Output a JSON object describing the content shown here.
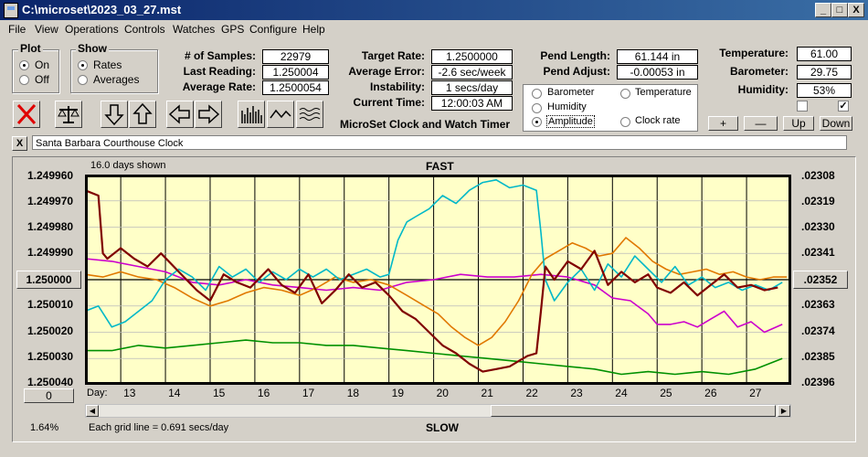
{
  "window": {
    "title": "C:\\microset\\2023_03_27.mst",
    "min_label": "_",
    "max_label": "□",
    "close_label": "X"
  },
  "menu": [
    "File",
    "View",
    "Operations",
    "Controls",
    "Watches",
    "GPS",
    "Configure",
    "Help"
  ],
  "plot_group": {
    "title": "Plot",
    "on": "On",
    "off": "Off",
    "selected": "On"
  },
  "show_group": {
    "title": "Show",
    "rates": "Rates",
    "averages": "Averages",
    "selected": "Rates"
  },
  "stats": {
    "samples_label": "# of Samples:",
    "samples": "22979",
    "last_label": "Last Reading:",
    "last": "1.250004",
    "avg_label": "Average Rate:",
    "avg": "1.2500054",
    "target_label": "Target Rate:",
    "target": "1.2500000",
    "error_label": "Average Error:",
    "error": "-2.6 sec/week",
    "instab_label": "Instability:",
    "instab": "1 secs/day",
    "time_label": "Current Time:",
    "time": "12:00:03 AM",
    "pend_len_label": "Pend Length:",
    "pend_len": "61.144 in",
    "pend_adj_label": "Pend Adjust:",
    "pend_adj": "-0.00053 in",
    "temp_label": "Temperature:",
    "temp": "61.00",
    "baro_label": "Barometer:",
    "baro": "29.75",
    "hum_label": "Humidity:",
    "hum": "53%"
  },
  "app_title": "MicroSet Clock and Watch Timer",
  "sensors": {
    "barometer": "Barometer",
    "temperature": "Temperature",
    "humidity": "Humidity",
    "amplitude": "Amplitude",
    "clock_rate": "Clock rate",
    "selected": "Amplitude",
    "colors": {
      "barometer": "#e07800",
      "temperature": "#009000",
      "humidity": "#cc00cc",
      "amplitude": "#00b8c8",
      "clock_rate": "#800000"
    }
  },
  "adjust_buttons": {
    "plus": "+",
    "minus": "—",
    "up": "Up",
    "down": "Down"
  },
  "checkboxes": {
    "left_checked": false,
    "right_checked": true,
    "check_mark": "✓"
  },
  "watch_name": "Santa Barbara Courthouse Clock",
  "clear_label": "X",
  "chart_data": {
    "type": "line",
    "top_label": "FAST",
    "bottom_label": "SLOW",
    "days_shown": "16.0 days shown",
    "grid_note": "Each grid line = 0.691 secs/day",
    "percent": "1.64%",
    "day_label": "Day:",
    "x_ticks": [
      "13",
      "14",
      "15",
      "16",
      "17",
      "18",
      "19",
      "20",
      "21",
      "22",
      "23",
      "24",
      "25",
      "26",
      "27"
    ],
    "xlim": [
      12.2,
      28.0
    ],
    "ylim": [
      1.24996,
      1.25004
    ],
    "y_ticks": [
      "1.249960",
      "1.249970",
      "1.249980",
      "1.249990",
      "1.250000",
      "1.250010",
      "1.250020",
      "1.250030",
      "1.250040"
    ],
    "y_center_button": "1.250000",
    "y_bottom_button": "0",
    "right_ticks": [
      ".02308",
      ".02319",
      ".02330",
      ".02341",
      ".02352",
      ".02363",
      ".02374",
      ".02385",
      ".02396"
    ],
    "right_center_button": ".02352",
    "series": [
      {
        "name": "Clock rate",
        "color": "#800000",
        "x": [
          12.2,
          12.5,
          12.6,
          12.7,
          13.0,
          13.3,
          13.6,
          13.9,
          14.3,
          14.7,
          15.0,
          15.3,
          15.6,
          15.9,
          16.3,
          16.6,
          16.9,
          17.2,
          17.5,
          17.8,
          18.1,
          18.4,
          18.7,
          19.0,
          19.3,
          19.6,
          19.9,
          20.2,
          20.5,
          20.8,
          21.1,
          21.4,
          21.7,
          21.9,
          22.1,
          22.3,
          22.4,
          22.5,
          22.7,
          23.0,
          23.3,
          23.6,
          23.9,
          24.2,
          24.5,
          24.8,
          25.0,
          25.3,
          25.6,
          25.9,
          26.2,
          26.5,
          26.8,
          27.1,
          27.4,
          27.7
        ],
        "y": [
          1.249966,
          1.249968,
          1.24999,
          1.249992,
          1.249988,
          1.249992,
          1.249995,
          1.24999,
          1.249997,
          1.250004,
          1.250008,
          1.249998,
          1.250001,
          1.250003,
          1.249996,
          1.250002,
          1.250005,
          1.249998,
          1.250009,
          1.250004,
          1.249998,
          1.250003,
          1.250001,
          1.250006,
          1.250012,
          1.250015,
          1.25002,
          1.250025,
          1.250028,
          1.250032,
          1.250035,
          1.250034,
          1.250033,
          1.250031,
          1.250029,
          1.250028,
          1.250012,
          1.249995,
          1.25,
          1.249993,
          1.249996,
          1.249989,
          1.250002,
          1.249997,
          1.250001,
          1.249998,
          1.250003,
          1.250005,
          1.250001,
          1.250006,
          1.250002,
          1.249998,
          1.250003,
          1.250002,
          1.250004,
          1.250003
        ]
      },
      {
        "name": "Amplitude",
        "color": "#00b8c8",
        "x": [
          12.2,
          12.5,
          12.8,
          13.1,
          13.4,
          13.7,
          14.0,
          14.3,
          14.6,
          14.9,
          15.2,
          15.5,
          15.8,
          16.1,
          16.4,
          16.7,
          17.0,
          17.3,
          17.6,
          17.9,
          18.2,
          18.5,
          18.8,
          19.0,
          19.2,
          19.4,
          19.6,
          19.9,
          20.2,
          20.5,
          20.8,
          21.1,
          21.4,
          21.7,
          22.0,
          22.3,
          22.4,
          22.5,
          22.7,
          23.0,
          23.3,
          23.6,
          23.9,
          24.2,
          24.5,
          24.8,
          25.1,
          25.4,
          25.7,
          26.0,
          26.3,
          26.6,
          26.9,
          27.2,
          27.5,
          27.8
        ],
        "y": [
          1.250012,
          1.25001,
          1.250018,
          1.250016,
          1.250012,
          1.250008,
          1.25,
          1.249996,
          1.249999,
          1.250004,
          1.249995,
          1.249999,
          1.249996,
          1.250001,
          1.249997,
          1.25,
          1.249996,
          1.249999,
          1.249996,
          1.25,
          1.249998,
          1.249996,
          1.249999,
          1.249998,
          1.249985,
          1.249978,
          1.249976,
          1.249973,
          1.249968,
          1.249971,
          1.249966,
          1.249963,
          1.249962,
          1.249965,
          1.249964,
          1.249966,
          1.249982,
          1.25,
          1.250008,
          1.250001,
          1.249996,
          1.250004,
          1.249994,
          1.249999,
          1.249991,
          1.249996,
          1.250001,
          1.249995,
          1.250002,
          1.249999,
          1.250003,
          1.250001,
          1.250004,
          1.250002,
          1.250004,
          1.250001
        ]
      },
      {
        "name": "Barometer",
        "color": "#e07800",
        "x": [
          12.2,
          12.6,
          13.0,
          13.4,
          13.8,
          14.2,
          14.6,
          15.0,
          15.4,
          15.8,
          16.2,
          16.6,
          17.0,
          17.4,
          17.8,
          18.2,
          18.6,
          19.0,
          19.4,
          19.8,
          20.1,
          20.4,
          20.7,
          21.0,
          21.3,
          21.6,
          21.9,
          22.2,
          22.5,
          22.8,
          23.1,
          23.4,
          23.7,
          24.0,
          24.3,
          24.6,
          24.9,
          25.2,
          25.5,
          25.8,
          26.1,
          26.4,
          26.7,
          27.0,
          27.3,
          27.6,
          27.9
        ],
        "y": [
          1.249998,
          1.249999,
          1.249997,
          1.249999,
          1.25,
          1.250003,
          1.250007,
          1.25001,
          1.250008,
          1.250005,
          1.250003,
          1.250004,
          1.250006,
          1.250003,
          1.249999,
          1.250001,
          1.25,
          1.250002,
          1.250006,
          1.25001,
          1.250013,
          1.250018,
          1.250022,
          1.250025,
          1.250022,
          1.250016,
          1.250008,
          1.249998,
          1.249992,
          1.249989,
          1.249986,
          1.249988,
          1.249991,
          1.24999,
          1.249984,
          1.249988,
          1.249993,
          1.249996,
          1.249998,
          1.249997,
          1.249996,
          1.249998,
          1.249997,
          1.249999,
          1.25,
          1.249999,
          1.249999
        ]
      },
      {
        "name": "Humidity",
        "color": "#cc00cc",
        "x": [
          12.2,
          12.8,
          13.4,
          14.0,
          14.6,
          15.2,
          15.8,
          16.4,
          17.0,
          17.6,
          18.2,
          18.8,
          19.4,
          20.0,
          20.6,
          21.2,
          21.8,
          22.4,
          23.0,
          23.6,
          24.0,
          24.4,
          24.8,
          25.0,
          25.3,
          25.6,
          25.9,
          26.2,
          26.5,
          26.8,
          27.1,
          27.4,
          27.8
        ],
        "y": [
          1.249992,
          1.249993,
          1.249995,
          1.249997,
          1.250001,
          1.250002,
          1.25,
          1.250002,
          1.250003,
          1.250004,
          1.250003,
          1.250004,
          1.250001,
          1.25,
          1.249998,
          1.249999,
          1.249999,
          1.249998,
          1.249999,
          1.250002,
          1.250007,
          1.250008,
          1.250013,
          1.250017,
          1.250017,
          1.250016,
          1.250018,
          1.250015,
          1.250012,
          1.250018,
          1.250016,
          1.25002,
          1.250017
        ]
      },
      {
        "name": "Temperature",
        "color": "#009000",
        "x": [
          12.2,
          12.8,
          13.4,
          14.0,
          14.6,
          15.2,
          15.8,
          16.4,
          17.0,
          17.6,
          18.2,
          18.8,
          19.4,
          20.0,
          20.6,
          21.2,
          21.8,
          22.4,
          23.0,
          23.6,
          24.2,
          24.8,
          25.4,
          26.0,
          26.6,
          27.2,
          27.8
        ],
        "y": [
          1.250027,
          1.250027,
          1.250025,
          1.250026,
          1.250025,
          1.250024,
          1.250023,
          1.250024,
          1.250024,
          1.250025,
          1.250025,
          1.250026,
          1.250027,
          1.250028,
          1.250029,
          1.25003,
          1.250031,
          1.250032,
          1.250033,
          1.250034,
          1.250036,
          1.250035,
          1.250036,
          1.250035,
          1.250036,
          1.250034,
          1.25003
        ]
      }
    ]
  }
}
